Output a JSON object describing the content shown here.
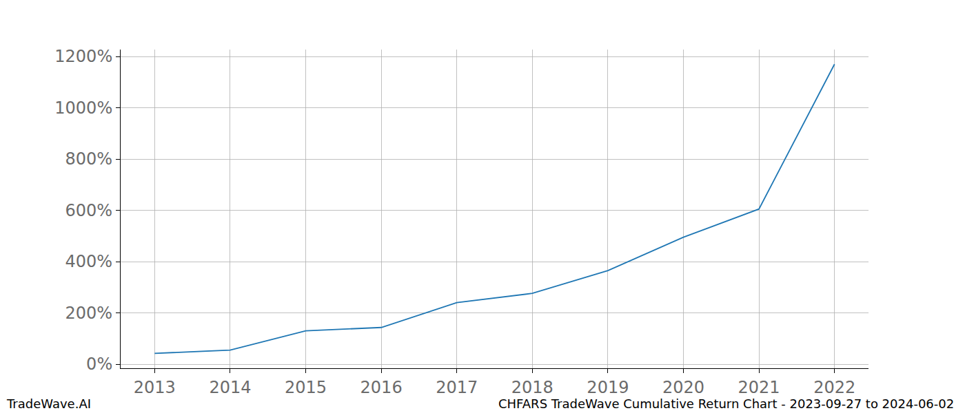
{
  "chart_data": {
    "type": "line",
    "x": [
      2013,
      2014,
      2015,
      2016,
      2017,
      2018,
      2019,
      2020,
      2021,
      2022
    ],
    "series": [
      {
        "color": "#1f77b4",
        "values": [
          42,
          55,
          130,
          143,
          240,
          276,
          365,
          495,
          605,
          1170
        ]
      }
    ],
    "xlim": [
      2012.55,
      2022.45
    ],
    "xticks": [
      2013,
      2014,
      2015,
      2016,
      2017,
      2018,
      2019,
      2020,
      2021,
      2022
    ],
    "ylim": [
      -16,
      1227
    ],
    "yticks": [
      {
        "value": 0,
        "label": "0%"
      },
      {
        "value": 200,
        "label": "200%"
      },
      {
        "value": 400,
        "label": "400%"
      },
      {
        "value": 600,
        "label": "600%"
      },
      {
        "value": 800,
        "label": "800%"
      },
      {
        "value": 1000,
        "label": "1000%"
      },
      {
        "value": 1200,
        "label": "1200%"
      }
    ],
    "grid": true,
    "annotations": [
      "TradeWave.AI",
      "CHFARS TradeWave Cumulative Return Chart - 2023-09-27 to 2024-06-02"
    ]
  }
}
